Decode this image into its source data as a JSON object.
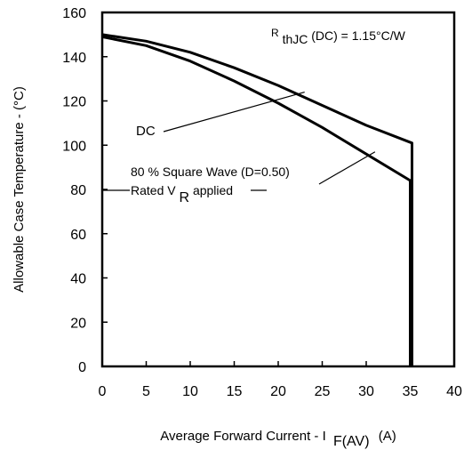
{
  "chart_data": {
    "type": "line",
    "title": "",
    "xlabel": {
      "main": "Average Forward Current - I",
      "sub": "F(AV)",
      "unit": "(A)"
    },
    "ylabel": "Allowable Case Temperature - (°C)",
    "xlim": [
      0,
      40
    ],
    "ylim": [
      0,
      160
    ],
    "x_ticks": [
      0,
      5,
      10,
      15,
      20,
      25,
      30,
      35,
      40
    ],
    "y_ticks": [
      0,
      20,
      40,
      60,
      80,
      100,
      120,
      140,
      160
    ],
    "grid": false,
    "series": [
      {
        "name": "DC",
        "x": [
          0,
          5,
          10,
          15,
          20,
          25,
          30,
          35.2,
          35.2
        ],
        "y": [
          150,
          147,
          142,
          135,
          127,
          118,
          109,
          101,
          0
        ]
      },
      {
        "name": "80 % Square Wave (D=0.50)",
        "x": [
          0,
          5,
          10,
          15,
          20,
          25,
          30,
          35,
          35
        ],
        "y": [
          149,
          145,
          138,
          129,
          119,
          108,
          96,
          84,
          0
        ]
      }
    ],
    "annotations": {
      "rthjc": {
        "r": "R",
        "sub": "thJC",
        "rest": " (DC) = 1.15°C/W"
      },
      "dc_label": "DC",
      "square_wave_label": "80 % Square Wave (D=0.50)",
      "rated_vr": {
        "prefix": "Rated V",
        "sub": "R",
        "suffix": " applied"
      }
    }
  }
}
